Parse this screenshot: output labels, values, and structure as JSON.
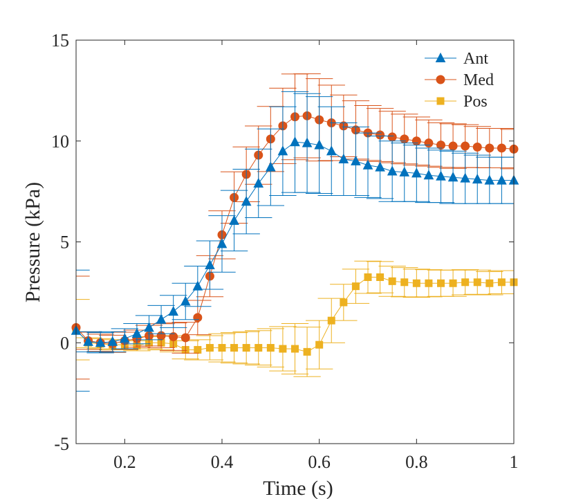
{
  "chart_data": {
    "type": "line",
    "title": "",
    "xlabel": "Time (s)",
    "ylabel": "Pressure (kPa)",
    "xlim": [
      0.1,
      1.0
    ],
    "ylim": [
      -5,
      15
    ],
    "xticks": [
      0.2,
      0.4,
      0.6,
      0.8,
      1.0
    ],
    "xtick_labels": [
      "0.2",
      "0.4",
      "0.6",
      "0.8",
      "1"
    ],
    "yticks": [
      -5,
      0,
      5,
      10,
      15
    ],
    "ytick_labels": [
      "-5",
      "0",
      "5",
      "10",
      "15"
    ],
    "legend_position": "top-right",
    "x": [
      0.1,
      0.125,
      0.15,
      0.175,
      0.2,
      0.225,
      0.25,
      0.275,
      0.3,
      0.325,
      0.35,
      0.375,
      0.4,
      0.425,
      0.45,
      0.475,
      0.5,
      0.525,
      0.55,
      0.575,
      0.6,
      0.625,
      0.65,
      0.675,
      0.7,
      0.725,
      0.75,
      0.775,
      0.8,
      0.825,
      0.85,
      0.875,
      0.9,
      0.925,
      0.95,
      0.975,
      1.0
    ],
    "series": [
      {
        "name": "Ant",
        "color": "#0072BD",
        "marker": "triangle",
        "values": [
          0.6,
          0.05,
          0.0,
          0.05,
          0.2,
          0.45,
          0.75,
          1.15,
          1.55,
          2.05,
          2.8,
          3.85,
          4.9,
          6.05,
          7.0,
          7.9,
          8.7,
          9.5,
          9.95,
          9.9,
          9.8,
          9.5,
          9.1,
          9.0,
          8.8,
          8.7,
          8.5,
          8.45,
          8.4,
          8.3,
          8.25,
          8.2,
          8.15,
          8.1,
          8.05,
          8.05,
          8.05
        ],
        "errors": [
          3.0,
          0.5,
          0.5,
          0.5,
          0.5,
          0.5,
          0.6,
          0.7,
          0.8,
          0.9,
          1.0,
          1.2,
          1.4,
          1.5,
          1.6,
          1.7,
          1.9,
          2.2,
          2.5,
          2.45,
          2.4,
          2.2,
          1.8,
          1.7,
          1.6,
          1.55,
          1.5,
          1.45,
          1.4,
          1.35,
          1.3,
          1.3,
          1.25,
          1.2,
          1.15,
          1.15,
          1.15
        ]
      },
      {
        "name": "Med",
        "color": "#D95319",
        "marker": "circle",
        "values": [
          0.75,
          0.1,
          0.0,
          -0.05,
          0.1,
          0.2,
          0.35,
          0.35,
          0.3,
          0.25,
          1.25,
          3.3,
          5.35,
          7.2,
          8.35,
          9.3,
          10.1,
          10.75,
          11.2,
          11.25,
          11.05,
          10.9,
          10.75,
          10.55,
          10.4,
          10.3,
          10.2,
          10.1,
          10.0,
          9.9,
          9.8,
          9.75,
          9.75,
          9.7,
          9.65,
          9.65,
          9.6
        ]
      },
      {
        "name": "Pos",
        "color": "#EDB120",
        "marker": "square",
        "values": [
          0.65,
          0.0,
          -0.05,
          -0.1,
          -0.1,
          -0.15,
          0.0,
          0.0,
          -0.05,
          -0.35,
          -0.35,
          -0.25,
          -0.25,
          -0.25,
          -0.25,
          -0.25,
          -0.25,
          -0.3,
          -0.3,
          -0.45,
          -0.1,
          1.1,
          2.0,
          2.8,
          3.25,
          3.25,
          3.05,
          3.0,
          2.95,
          2.95,
          2.95,
          2.95,
          3.0,
          3.0,
          2.95,
          3.0,
          3.0
        ]
      }
    ]
  }
}
